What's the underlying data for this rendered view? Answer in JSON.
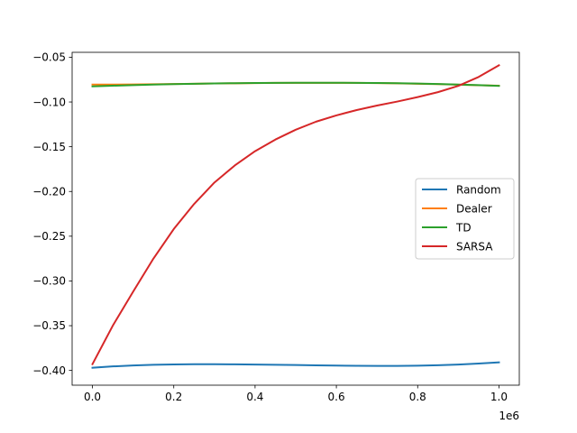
{
  "chart_data": {
    "type": "line",
    "title": "",
    "xlabel": "",
    "ylabel": "",
    "x_offset_label": "1e6",
    "xlim": [
      -50000,
      1050000
    ],
    "ylim": [
      -0.4165,
      -0.0445
    ],
    "xticks": [
      0,
      200000,
      400000,
      600000,
      800000,
      1000000
    ],
    "xtick_labels": [
      "0.0",
      "0.2",
      "0.4",
      "0.6",
      "0.8",
      "1.0"
    ],
    "yticks": [
      -0.4,
      -0.35,
      -0.3,
      -0.25,
      -0.2,
      -0.15,
      -0.1,
      -0.05
    ],
    "ytick_labels": [
      "−0.40",
      "−0.35",
      "−0.30",
      "−0.25",
      "−0.20",
      "−0.15",
      "−0.10",
      "−0.05"
    ],
    "grid": false,
    "legend_position": "center-right",
    "x": [
      0,
      50000,
      100000,
      150000,
      200000,
      250000,
      300000,
      350000,
      400000,
      450000,
      500000,
      550000,
      600000,
      650000,
      700000,
      750000,
      800000,
      850000,
      900000,
      950000,
      1000000
    ],
    "series": [
      {
        "name": "Random",
        "color": "#1f77b4",
        "values": [
          -0.397,
          -0.3955,
          -0.3944,
          -0.3937,
          -0.3933,
          -0.3931,
          -0.3931,
          -0.3932,
          -0.3934,
          -0.3937,
          -0.394,
          -0.3943,
          -0.3946,
          -0.3948,
          -0.3949,
          -0.3949,
          -0.3947,
          -0.3942,
          -0.3934,
          -0.3923,
          -0.391
        ]
      },
      {
        "name": "Dealer",
        "color": "#ff7f0e",
        "values": [
          -0.0805,
          -0.0805,
          -0.0804,
          -0.0802,
          -0.0799,
          -0.0796,
          -0.0793,
          -0.0791,
          -0.0789,
          -0.0787,
          -0.0786,
          -0.0786,
          -0.0786,
          -0.0787,
          -0.0789,
          -0.0792,
          -0.0796,
          -0.0801,
          -0.0807,
          -0.0813,
          -0.0818
        ]
      },
      {
        "name": "TD",
        "color": "#2ca02c",
        "values": [
          -0.0825,
          -0.0818,
          -0.0812,
          -0.0806,
          -0.0801,
          -0.0797,
          -0.0793,
          -0.079,
          -0.0788,
          -0.0786,
          -0.0785,
          -0.0785,
          -0.0785,
          -0.0786,
          -0.0788,
          -0.079,
          -0.0794,
          -0.0799,
          -0.0805,
          -0.0812,
          -0.082
        ]
      },
      {
        "name": "SARSA",
        "color": "#d62728",
        "values": [
          -0.393,
          -0.35,
          -0.312,
          -0.275,
          -0.242,
          -0.214,
          -0.19,
          -0.171,
          -0.155,
          -0.142,
          -0.131,
          -0.122,
          -0.115,
          -0.109,
          -0.104,
          -0.0995,
          -0.0945,
          -0.089,
          -0.082,
          -0.072,
          -0.059
        ]
      }
    ]
  }
}
